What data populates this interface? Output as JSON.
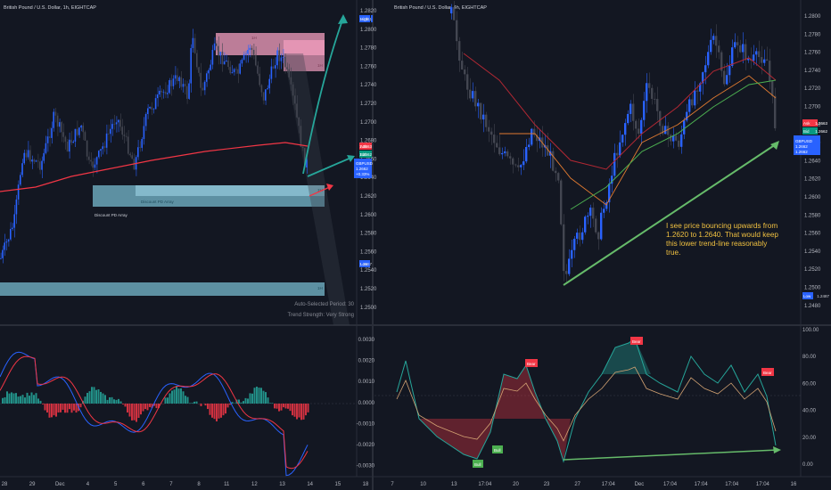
{
  "left": {
    "title": "British Pound / U.S. Dollar, 1h, EIGHTCAP",
    "high_label": "High",
    "high_value": "1.2811",
    "low_label": "Low",
    "low_value": "1.2557",
    "ask_label": "Ask",
    "ask_value": "1.2663",
    "bid_label": "Bid",
    "bid_value": "1.2662",
    "symbol_tag": "GBPUSD",
    "symbol_price": "1.2662",
    "symbol_sub": "+0.33%",
    "auto_period": "Auto-Selected Period: 30",
    "trend_strength": "Trend Strength: Very Strong",
    "discount_label": "Discount PD Array",
    "discount_label2": "Discount PD Array",
    "zone_tag_1h": "1H",
    "zone_tag_4h": "1H",
    "zone_tag_low": "1H",
    "premium_tag": "1H",
    "price_ticks": [
      "1.2820",
      "1.2800",
      "1.2780",
      "1.2760",
      "1.2740",
      "1.2720",
      "1.2700",
      "1.2680",
      "1.2660",
      "1.2640",
      "1.2620",
      "1.2600",
      "1.2580",
      "1.2560",
      "1.2540",
      "1.2520",
      "1.2500"
    ],
    "osc_ticks": [
      "0.0030",
      "0.0020",
      "0.0010",
      "0.0000",
      "-0.0010",
      "-0.0020",
      "-0.0030"
    ],
    "time_ticks": [
      "28",
      "29",
      "Dec",
      "4",
      "5",
      "6",
      "7",
      "8",
      "11",
      "12",
      "13",
      "14",
      "15",
      "18"
    ]
  },
  "right": {
    "title": "British Pound / U.S. Dollar, 4h, EIGHTCAP",
    "ask_label": "Ask",
    "ask_value": "1.2663",
    "bid_label": "Bid",
    "bid_value": "1.2662",
    "symbol_tag": "GBPUSD",
    "symbol_price": "1.2662",
    "symbol_sub": "1.2662",
    "low_label": "Low",
    "low_value": "1.2487",
    "note_text": "I see price bouncing upwards from 1.2620 to 1.2640. That would keep this lower trend-line reasonably true.",
    "price_ticks": [
      "1.2800",
      "1.2780",
      "1.2760",
      "1.2740",
      "1.2720",
      "1.2700",
      "1.2680",
      "1.2660",
      "1.2640",
      "1.2620",
      "1.2600",
      "1.2580",
      "1.2560",
      "1.2540",
      "1.2520",
      "1.2500",
      "1.2480"
    ],
    "rsi_ticks": [
      "100.00",
      "80.00",
      "60.00",
      "40.00",
      "20.00",
      "0.00"
    ],
    "bear_label": "Bear",
    "bull_label": "Bull",
    "time_ticks": [
      "7",
      "10",
      "13",
      "17:04",
      "20",
      "23",
      "27",
      "17:04",
      "Dec",
      "17:04",
      "17:04",
      "17:04",
      "17:04",
      "16"
    ]
  },
  "colors": {
    "background": "#131722",
    "up_candle": "#2962ff",
    "down_candle": "#434651",
    "ema_red": "#f23645",
    "green_arrow": "#4caf50",
    "teal_arrow": "#26a69a",
    "zone_blue": "#7ec4d8",
    "zone_pink": "#f5a0c0",
    "note_text": "#f0c040"
  }
}
